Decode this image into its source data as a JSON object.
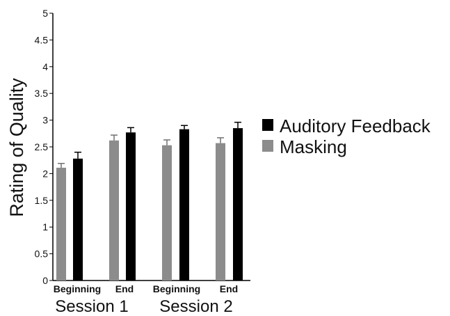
{
  "chart_data": {
    "type": "bar",
    "ylabel": "Rating of Quality",
    "ylim": [
      0,
      5
    ],
    "yticks": [
      "0",
      "0.5",
      "1",
      "1.5",
      "2",
      "2.5",
      "3",
      "3.5",
      "4",
      "4.5",
      "5"
    ],
    "categories": [
      "Beginning",
      "End",
      "Beginning",
      "End"
    ],
    "groups": [
      "Session 1",
      "Session 2"
    ],
    "series": [
      {
        "name": "Masking",
        "color": "#8c8c8c",
        "values": [
          2.11,
          2.62,
          2.53,
          2.57
        ],
        "errors": [
          0.08,
          0.1,
          0.1,
          0.1
        ]
      },
      {
        "name": "Auditory Feedback",
        "color": "#000000",
        "values": [
          2.28,
          2.77,
          2.83,
          2.85
        ],
        "errors": [
          0.12,
          0.09,
          0.07,
          0.11
        ]
      }
    ],
    "legend": [
      "Auditory Feedback",
      "Masking"
    ],
    "legend_position": "right",
    "grid": false
  }
}
